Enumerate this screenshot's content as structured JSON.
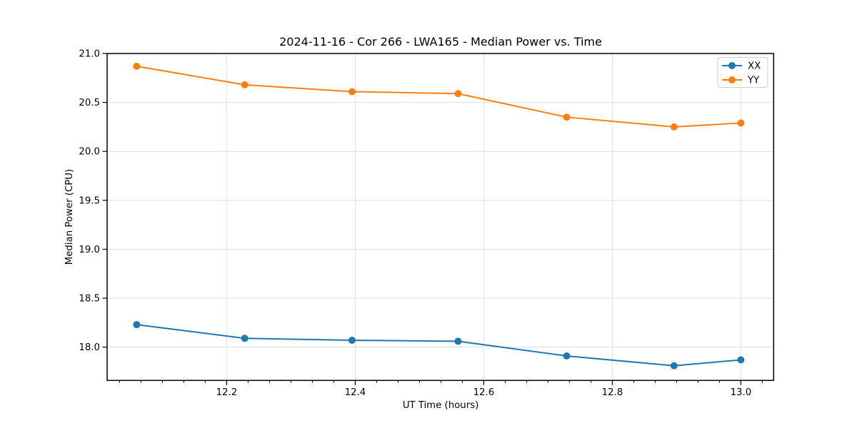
{
  "chart_data": {
    "type": "line",
    "title": "2024-11-16 - Cor 266 - LWA165 - Median Power vs. Time",
    "xlabel": "UT Time (hours)",
    "ylabel": "Median Power (CPU)",
    "x": [
      12.06,
      12.228,
      12.395,
      12.56,
      12.729,
      12.896,
      13.0
    ],
    "series": [
      {
        "name": "XX",
        "color": "#1f77b4",
        "values": [
          18.23,
          18.09,
          18.07,
          18.06,
          17.91,
          17.81,
          17.87
        ]
      },
      {
        "name": "YY",
        "color": "#ff7f0e",
        "values": [
          20.87,
          20.68,
          20.61,
          20.59,
          20.35,
          20.25,
          20.29
        ]
      }
    ],
    "xlim": [
      12.014,
      13.051
    ],
    "ylim": [
      17.66,
      21.0
    ],
    "xticks": [
      12.2,
      12.4,
      12.6,
      12.8,
      13.0
    ],
    "yticks": [
      18.0,
      18.5,
      19.0,
      19.5,
      20.0,
      20.5,
      21.0
    ],
    "x_minor_step": 0.033333,
    "grid": true,
    "legend_position": "upper right",
    "colors": {
      "spine": "#000000",
      "grid": "#dedede",
      "legend_border": "#cccccc",
      "background": "#ffffff",
      "text": "#000000"
    }
  }
}
